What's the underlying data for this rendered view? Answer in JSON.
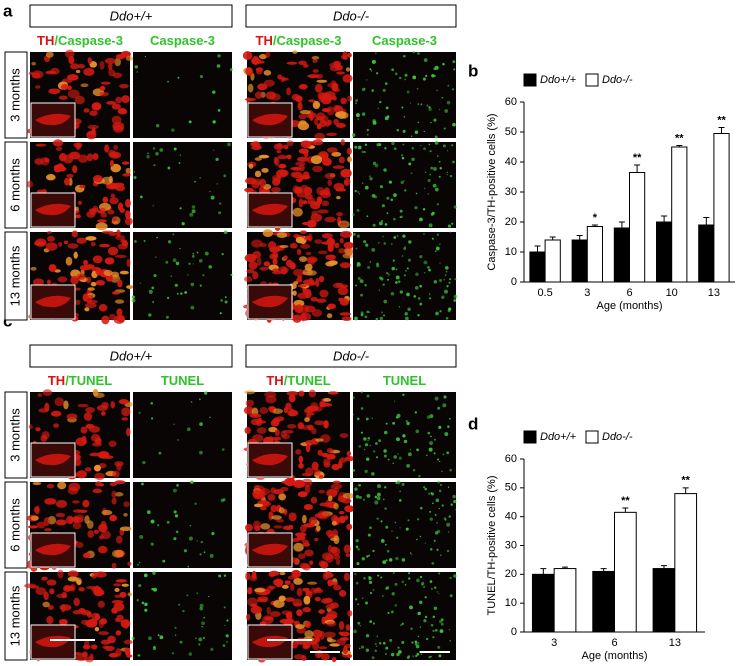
{
  "panels": {
    "labels": [
      "a",
      "b",
      "c",
      "d"
    ],
    "a": {
      "genotypes": [
        "Ddo+/+",
        "Ddo-/-"
      ],
      "columns": [
        {
          "th": "TH",
          "rest": "/Caspase-3"
        },
        {
          "rest": "Caspase-3"
        },
        {
          "th": "TH",
          "rest": "/Caspase-3"
        },
        {
          "rest": "Caspase-3"
        }
      ],
      "rows": [
        "3 months",
        "6 months",
        "13 months"
      ]
    },
    "c": {
      "genotypes": [
        "Ddo+/+",
        "Ddo-/-"
      ],
      "columns": [
        {
          "th": "TH",
          "rest": "/TUNEL"
        },
        {
          "rest": "TUNEL"
        },
        {
          "th": "TH",
          "rest": "/TUNEL"
        },
        {
          "rest": "TUNEL"
        }
      ],
      "rows": [
        "3 months",
        "6 months",
        "13 months"
      ]
    }
  },
  "chart_data": [
    {
      "type": "bar",
      "ylabel": "Caspase-3/TH-positive cells (%)",
      "xlabel": "Age (months)",
      "categories": [
        "0.5",
        "3",
        "6",
        "10",
        "13"
      ],
      "series": [
        {
          "name": "Ddo+/+",
          "color": "#000000",
          "values": [
            10,
            14,
            18,
            20,
            19
          ],
          "errors": [
            2,
            1.5,
            2,
            2,
            2.5
          ]
        },
        {
          "name": "Ddo-/-",
          "color": "#ffffff",
          "values": [
            14,
            18.5,
            36.5,
            45,
            49.5
          ],
          "errors": [
            1,
            0.5,
            2.5,
            0.5,
            2
          ]
        }
      ],
      "annotations": [
        {
          "x": "3",
          "label": "*"
        },
        {
          "x": "6",
          "label": "**"
        },
        {
          "x": "10",
          "label": "**"
        },
        {
          "x": "13",
          "label": "**"
        }
      ],
      "ylim": [
        0,
        60
      ],
      "yticks": [
        0,
        10,
        20,
        30,
        40,
        50,
        60
      ]
    },
    {
      "type": "bar",
      "ylabel": "TUNEL/TH-positive cells (%)",
      "xlabel": "Age (months)",
      "categories": [
        "3",
        "6",
        "13"
      ],
      "series": [
        {
          "name": "Ddo+/+",
          "color": "#000000",
          "values": [
            20,
            21,
            22
          ],
          "errors": [
            2,
            1,
            1
          ]
        },
        {
          "name": "Ddo-/-",
          "color": "#ffffff",
          "values": [
            22,
            41.5,
            48
          ],
          "errors": [
            0.5,
            1.5,
            2
          ]
        }
      ],
      "annotations": [
        {
          "x": "6",
          "label": "**"
        },
        {
          "x": "13",
          "label": "**"
        }
      ],
      "ylim": [
        0,
        60
      ],
      "yticks": [
        0,
        10,
        20,
        30,
        40,
        50,
        60
      ]
    }
  ]
}
